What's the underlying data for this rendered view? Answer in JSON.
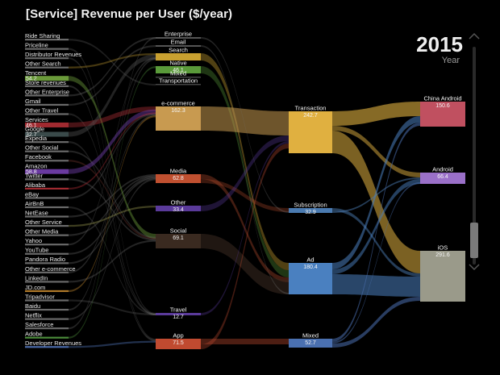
{
  "title": "[Service] Revenue per User ($/year)",
  "year_display": {
    "value": "2015",
    "label": "Year"
  },
  "chart_data": {
    "type": "sankey",
    "title": "[Service] Revenue per User ($/year)",
    "year": "2015",
    "left_nodes": [
      {
        "name": "Ride Sharing",
        "value": "",
        "color": "#6a6a6a"
      },
      {
        "name": "Priceline",
        "value": "",
        "color": "#6a6a6a"
      },
      {
        "name": "Distributor Revenues",
        "value": "",
        "color": "#6a6a6a"
      },
      {
        "name": "Other Search",
        "value": "",
        "color": "#6a6a6a"
      },
      {
        "name": "Tencent",
        "value": "54.2",
        "color": "#6a9a3a"
      },
      {
        "name": "Store revenues",
        "value": "",
        "color": "#6a6a6a"
      },
      {
        "name": "Other Enterprise",
        "value": "",
        "color": "#6a6a6a"
      },
      {
        "name": "Gmail",
        "value": "",
        "color": "#6a6a6a"
      },
      {
        "name": "Other Travel",
        "value": "",
        "color": "#6a6a6a"
      },
      {
        "name": "Services",
        "value": "46.1",
        "color": "#a02a30"
      },
      {
        "name": "Google",
        "value": "32.7",
        "color": "#3a4a4a"
      },
      {
        "name": "Expedia",
        "value": "",
        "color": "#6a6a6a"
      },
      {
        "name": "Other Social",
        "value": "",
        "color": "#6a6a6a"
      },
      {
        "name": "Facebook",
        "value": "",
        "color": "#6a6a6a"
      },
      {
        "name": "Amazon",
        "value": "58.8",
        "color": "#6a3aa0"
      },
      {
        "name": "Twitter",
        "value": "",
        "color": "#6a6a6a"
      },
      {
        "name": "Alibaba",
        "value": "",
        "color": "#a02a30"
      },
      {
        "name": "eBay",
        "value": "",
        "color": "#6a6a6a"
      },
      {
        "name": "AirBnB",
        "value": "",
        "color": "#6a6a6a"
      },
      {
        "name": "NetEase",
        "value": "",
        "color": "#6a6a6a"
      },
      {
        "name": "Other Service",
        "value": "",
        "color": "#6a6a6a"
      },
      {
        "name": "Other Media",
        "value": "",
        "color": "#6a6a6a"
      },
      {
        "name": "Yahoo",
        "value": "",
        "color": "#6a6a6a"
      },
      {
        "name": "YouTube",
        "value": "",
        "color": "#6a6a6a"
      },
      {
        "name": "Pandora Radio",
        "value": "",
        "color": "#6a6a6a"
      },
      {
        "name": "Other e-commerce",
        "value": "",
        "color": "#6a6a6a"
      },
      {
        "name": "LinkedIn",
        "value": "",
        "color": "#6a6a6a"
      },
      {
        "name": "JD.com",
        "value": "",
        "color": "#b07a2a"
      },
      {
        "name": "Tripadvisor",
        "value": "",
        "color": "#6a6a6a"
      },
      {
        "name": "Baidu",
        "value": "",
        "color": "#6a6a6a"
      },
      {
        "name": "Netflix",
        "value": "",
        "color": "#6a6a6a"
      },
      {
        "name": "Salesforce",
        "value": "",
        "color": "#6a6a6a"
      },
      {
        "name": "Adobe",
        "value": "",
        "color": "#4a8a3a"
      },
      {
        "name": "Developer Revenues",
        "value": "",
        "color": "#4a6aa8"
      }
    ],
    "category_nodes": [
      {
        "name": "Enterprise",
        "value": "",
        "color": "#555555"
      },
      {
        "name": "Email",
        "value": "",
        "color": "#555555"
      },
      {
        "name": "Search",
        "value": "",
        "color": "#c8a030"
      },
      {
        "name": "Native",
        "value": "46.1",
        "color": "#5a9a3a"
      },
      {
        "name": "Mixed",
        "value": "",
        "color": "#444444"
      },
      {
        "name": "Transportation",
        "value": "",
        "color": "#444444"
      },
      {
        "name": "e-commerce",
        "value": "162.3",
        "color": "#c89a50"
      },
      {
        "name": "Media",
        "value": "62.8",
        "color": "#c05030"
      },
      {
        "name": "Other",
        "value": "33.4",
        "color": "#5a3a9a"
      },
      {
        "name": "Social",
        "value": "69.1",
        "color": "#3a2a20"
      },
      {
        "name": "Travel",
        "value": "12.7",
        "color": "#5a3a9a"
      },
      {
        "name": "App",
        "value": "71.5",
        "color": "#c04a30"
      }
    ],
    "model_nodes": [
      {
        "name": "Transaction",
        "value": "242.7",
        "color": "#e0b040"
      },
      {
        "name": "Subscription",
        "value": "32.9",
        "color": "#4a7ab0"
      },
      {
        "name": "Ad",
        "value": "180.4",
        "color": "#4a80c0"
      },
      {
        "name": "Mixed",
        "value": "52.7",
        "color": "#4a70b0"
      }
    ],
    "platform_nodes": [
      {
        "name": "China Android",
        "value": "150.6",
        "color": "#c05060"
      },
      {
        "name": "Android",
        "value": "66.4",
        "color": "#9a70c8"
      },
      {
        "name": "iOS",
        "value": "291.6",
        "color": "#9a9a8a"
      }
    ]
  }
}
